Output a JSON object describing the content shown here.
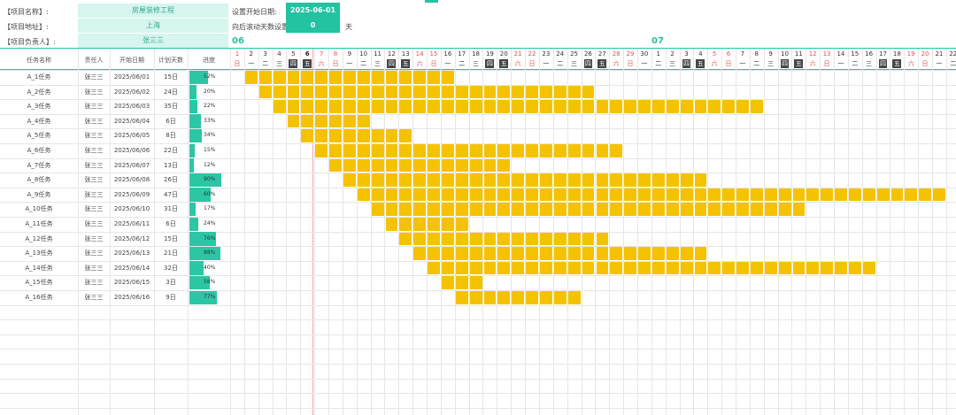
{
  "project": {
    "name_label": "【项目名称】:",
    "name_value": "房屋装修工程",
    "address_label": "【项目地址】:",
    "address_value": "上海",
    "manager_label": "【项目负责人】:",
    "manager_value": "张三三",
    "start_label": "设置开始日期:",
    "start_value": "2025-06-01",
    "scroll_label": "向后滚动天数设置:",
    "scroll_value": "0",
    "scroll_unit": "天"
  },
  "timeline": {
    "month1": "06",
    "month2": "07",
    "days": [
      "1",
      "2",
      "3",
      "4",
      "5",
      "6",
      "7",
      "8",
      "9",
      "10",
      "11",
      "12",
      "13",
      "14",
      "15",
      "16",
      "17",
      "18",
      "19",
      "20",
      "21",
      "22",
      "23",
      "24",
      "25",
      "26",
      "27",
      "28",
      "29",
      "30",
      "1",
      "2",
      "3",
      "4",
      "5",
      "6",
      "7",
      "8",
      "9",
      "10",
      "11",
      "12",
      "13",
      "14",
      "15",
      "16",
      "17",
      "18",
      "19",
      "20",
      "21",
      "22"
    ],
    "weekdays": [
      "日",
      "一",
      "二",
      "三",
      "四",
      "五",
      "六",
      "日",
      "一",
      "二",
      "三",
      "四",
      "五",
      "六",
      "日",
      "一",
      "二",
      "三",
      "四",
      "五",
      "六",
      "日",
      "一",
      "二",
      "三",
      "四",
      "五",
      "六",
      "日",
      "一",
      "二",
      "三",
      "四",
      "五",
      "六",
      "日",
      "一",
      "二",
      "三",
      "四",
      "五",
      "六",
      "日",
      "一",
      "二",
      "三",
      "四",
      "五",
      "六",
      "日",
      "一",
      "二"
    ],
    "today_index": 5
  },
  "table": {
    "headers": [
      "任务名称",
      "责任人",
      "开始日期",
      "计划天数",
      "进度"
    ],
    "rows": [
      {
        "name": "A_1任务",
        "owner": "张三三",
        "start": "2025/06/01",
        "days": "15日",
        "progress": "52%",
        "pct": 52,
        "offset": 0,
        "dur": 15
      },
      {
        "name": "A_2任务",
        "owner": "张三三",
        "start": "2025/06/02",
        "days": "24日",
        "progress": "20%",
        "pct": 20,
        "offset": 1,
        "dur": 24
      },
      {
        "name": "A_3任务",
        "owner": "张三三",
        "start": "2025/06/03",
        "days": "35日",
        "progress": "22%",
        "pct": 22,
        "offset": 2,
        "dur": 35
      },
      {
        "name": "A_4任务",
        "owner": "张三三",
        "start": "2025/06/04",
        "days": "6日",
        "progress": "33%",
        "pct": 33,
        "offset": 3,
        "dur": 6
      },
      {
        "name": "A_5任务",
        "owner": "张三三",
        "start": "2025/06/05",
        "days": "8日",
        "progress": "34%",
        "pct": 34,
        "offset": 4,
        "dur": 8
      },
      {
        "name": "A_6任务",
        "owner": "张三三",
        "start": "2025/06/06",
        "days": "22日",
        "progress": "15%",
        "pct": 15,
        "offset": 5,
        "dur": 22
      },
      {
        "name": "A_7任务",
        "owner": "张三三",
        "start": "2025/06/07",
        "days": "13日",
        "progress": "12%",
        "pct": 12,
        "offset": 6,
        "dur": 13
      },
      {
        "name": "A_8任务",
        "owner": "张三三",
        "start": "2025/06/08",
        "days": "26日",
        "progress": "90%",
        "pct": 90,
        "offset": 7,
        "dur": 26
      },
      {
        "name": "A_9任务",
        "owner": "张三三",
        "start": "2025/06/09",
        "days": "47日",
        "progress": "60%",
        "pct": 60,
        "offset": 8,
        "dur": 47
      },
      {
        "name": "A_10任务",
        "owner": "张三三",
        "start": "2025/06/10",
        "days": "31日",
        "progress": "17%",
        "pct": 17,
        "offset": 9,
        "dur": 31
      },
      {
        "name": "A_11任务",
        "owner": "张三三",
        "start": "2025/06/11",
        "days": "6日",
        "progress": "24%",
        "pct": 24,
        "offset": 10,
        "dur": 6
      },
      {
        "name": "A_12任务",
        "owner": "张三三",
        "start": "2025/06/12",
        "days": "15日",
        "progress": "76%",
        "pct": 76,
        "offset": 11,
        "dur": 15
      },
      {
        "name": "A_13任务",
        "owner": "张三三",
        "start": "2025/06/13",
        "days": "21日",
        "progress": "88%",
        "pct": 88,
        "offset": 12,
        "dur": 21
      },
      {
        "name": "A_14任务",
        "owner": "张三三",
        "start": "2025/06/14",
        "days": "32日",
        "progress": "40%",
        "pct": 40,
        "offset": 13,
        "dur": 32
      },
      {
        "name": "A_15任务",
        "owner": "张三三",
        "start": "2025/06/15",
        "days": "3日",
        "progress": "58%",
        "pct": 58,
        "offset": 14,
        "dur": 3
      },
      {
        "name": "A_16任务",
        "owner": "张三三",
        "start": "2025/06/16",
        "days": "9日",
        "progress": "77%",
        "pct": 77,
        "offset": 15,
        "dur": 9
      }
    ]
  },
  "colors": {
    "accent": "#23c2a1",
    "bar": "#f5c200",
    "weekend": "#e05555"
  }
}
